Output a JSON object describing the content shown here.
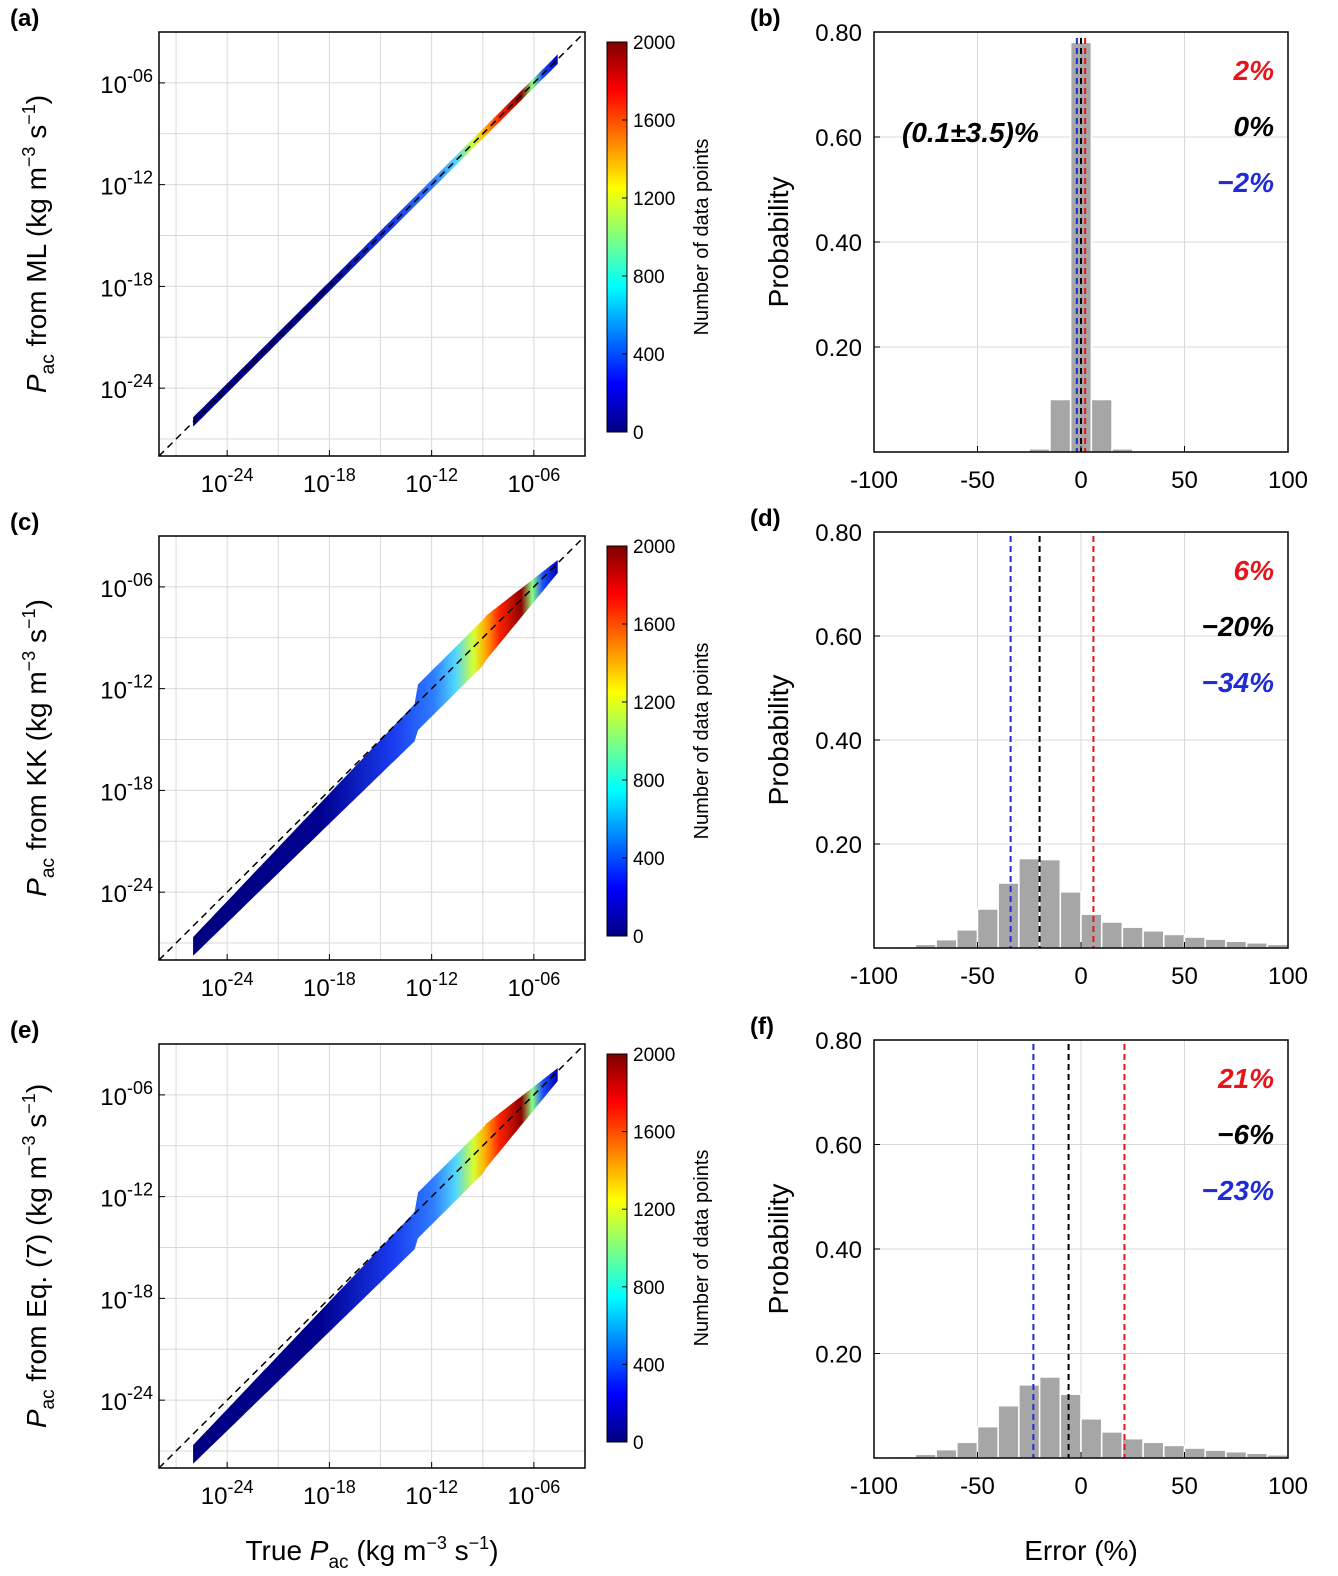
{
  "scatter_panels": [
    {
      "id": "a",
      "label": "(a)",
      "ylabel_prefix": "P",
      "ylabel_sub": "ac",
      "ylabel_text": " from ML (kg m",
      "ylabel_sup1": "−3",
      "ylabel_mid": " s",
      "ylabel_sup2": "−1",
      "ylabel_end": ")"
    },
    {
      "id": "c",
      "label": "(c)",
      "ylabel_prefix": "P",
      "ylabel_sub": "ac",
      "ylabel_text": " from KK (kg m",
      "ylabel_sup1": "−3",
      "ylabel_mid": " s",
      "ylabel_sup2": "−1",
      "ylabel_end": ")"
    },
    {
      "id": "e",
      "label": "(e)",
      "ylabel_prefix": "P",
      "ylabel_sub": "ac",
      "ylabel_text": " from Eq. (7)  (kg m",
      "ylabel_sup1": "−3",
      "ylabel_mid": " s",
      "ylabel_sup2": "−1",
      "ylabel_end": ")"
    }
  ],
  "hist_panels": [
    {
      "id": "b",
      "label": "(b)",
      "annotations": [
        "2%",
        "0%",
        "−2%"
      ],
      "center_text": "(0.1±3.5)%"
    },
    {
      "id": "d",
      "label": "(d)",
      "annotations": [
        "6%",
        "−20%",
        "−34%"
      ]
    },
    {
      "id": "f",
      "label": "(f)",
      "annotations": [
        "21%",
        "−6%",
        "−23%"
      ]
    }
  ],
  "xlabel_scatter": {
    "prefix": "True ",
    "sym": "P",
    "sub": "ac",
    "suffix": " (kg m",
    "sup1": "−3",
    "mid": " s",
    "sup2": "−1",
    "end": ")"
  },
  "xlabel_hist": "Error (%)",
  "ylabel_hist": "Probability",
  "colorbar": {
    "label": "Number of data points",
    "ticks": [
      "0",
      "400",
      "800",
      "1200",
      "1600",
      "2000"
    ]
  },
  "annotation_colors": [
    "#e8141b",
    "#000000",
    "#1f2bd6"
  ],
  "chart_data": [
    {
      "type": "scatter",
      "panel": "a",
      "x_scale": "log",
      "y_scale": "log",
      "xlim": [
        1e-28,
        0.001
      ],
      "ylim": [
        1e-28,
        0.001
      ],
      "x_ticks": [
        "10^-24",
        "10^-18",
        "10^-12",
        "10^-06"
      ],
      "y_ticks": [
        "10^-24",
        "10^-18",
        "10^-12",
        "10^-06"
      ],
      "reference_line": "1:1",
      "colorbar_range": [
        0,
        2000
      ],
      "spread": "narrow",
      "grid": true
    },
    {
      "type": "bar",
      "panel": "b",
      "xlim": [
        -100,
        100
      ],
      "ylim": [
        0,
        0.8
      ],
      "x_ticks": [
        "-100",
        "-50",
        "0",
        "50",
        "100"
      ],
      "y_ticks": [
        "0.20",
        "0.40",
        "0.60",
        "0.80"
      ],
      "bin_centers": [
        -20,
        -10,
        0,
        10,
        20
      ],
      "values": [
        0.006,
        0.1,
        0.78,
        0.1,
        0.006
      ],
      "vlines": [
        2,
        0,
        -2
      ],
      "grid": true
    },
    {
      "type": "scatter",
      "panel": "c",
      "x_scale": "log",
      "y_scale": "log",
      "xlim": [
        1e-28,
        0.001
      ],
      "ylim": [
        1e-28,
        0.001
      ],
      "x_ticks": [
        "10^-24",
        "10^-18",
        "10^-12",
        "10^-06"
      ],
      "y_ticks": [
        "10^-24",
        "10^-18",
        "10^-12",
        "10^-06"
      ],
      "reference_line": "1:1",
      "colorbar_range": [
        0,
        2000
      ],
      "spread": "wide",
      "grid": true
    },
    {
      "type": "bar",
      "panel": "d",
      "xlim": [
        -100,
        100
      ],
      "ylim": [
        0,
        0.8
      ],
      "x_ticks": [
        "-100",
        "-50",
        "0",
        "50",
        "100"
      ],
      "y_ticks": [
        "0.20",
        "0.40",
        "0.60",
        "0.80"
      ],
      "bin_centers": [
        -85,
        -75,
        -65,
        -55,
        -45,
        -35,
        -25,
        -15,
        -5,
        5,
        15,
        25,
        35,
        45,
        55,
        65,
        75,
        85,
        95
      ],
      "values": [
        0.003,
        0.007,
        0.016,
        0.035,
        0.075,
        0.125,
        0.172,
        0.17,
        0.108,
        0.065,
        0.05,
        0.04,
        0.033,
        0.026,
        0.021,
        0.017,
        0.013,
        0.01,
        0.007
      ],
      "vlines": [
        6,
        -20,
        -34
      ],
      "grid": true
    },
    {
      "type": "scatter",
      "panel": "e",
      "x_scale": "log",
      "y_scale": "log",
      "xlim": [
        1e-28,
        0.001
      ],
      "ylim": [
        1e-28,
        0.001
      ],
      "x_ticks": [
        "10^-24",
        "10^-18",
        "10^-12",
        "10^-06"
      ],
      "y_ticks": [
        "10^-24",
        "10^-18",
        "10^-12",
        "10^-06"
      ],
      "reference_line": "1:1",
      "colorbar_range": [
        0,
        2000
      ],
      "spread": "wide",
      "grid": true
    },
    {
      "type": "bar",
      "panel": "f",
      "xlim": [
        -100,
        100
      ],
      "ylim": [
        0,
        0.8
      ],
      "x_ticks": [
        "-100",
        "-50",
        "0",
        "50",
        "100"
      ],
      "y_ticks": [
        "0.20",
        "0.40",
        "0.60",
        "0.80"
      ],
      "bin_centers": [
        -85,
        -75,
        -65,
        -55,
        -45,
        -35,
        -25,
        -15,
        -5,
        5,
        15,
        25,
        35,
        45,
        55,
        65,
        75,
        85,
        95
      ],
      "values": [
        0.003,
        0.007,
        0.016,
        0.03,
        0.06,
        0.1,
        0.14,
        0.155,
        0.122,
        0.075,
        0.05,
        0.037,
        0.03,
        0.024,
        0.019,
        0.015,
        0.012,
        0.009,
        0.006
      ],
      "vlines": [
        21,
        -6,
        -23
      ],
      "grid": true
    }
  ]
}
